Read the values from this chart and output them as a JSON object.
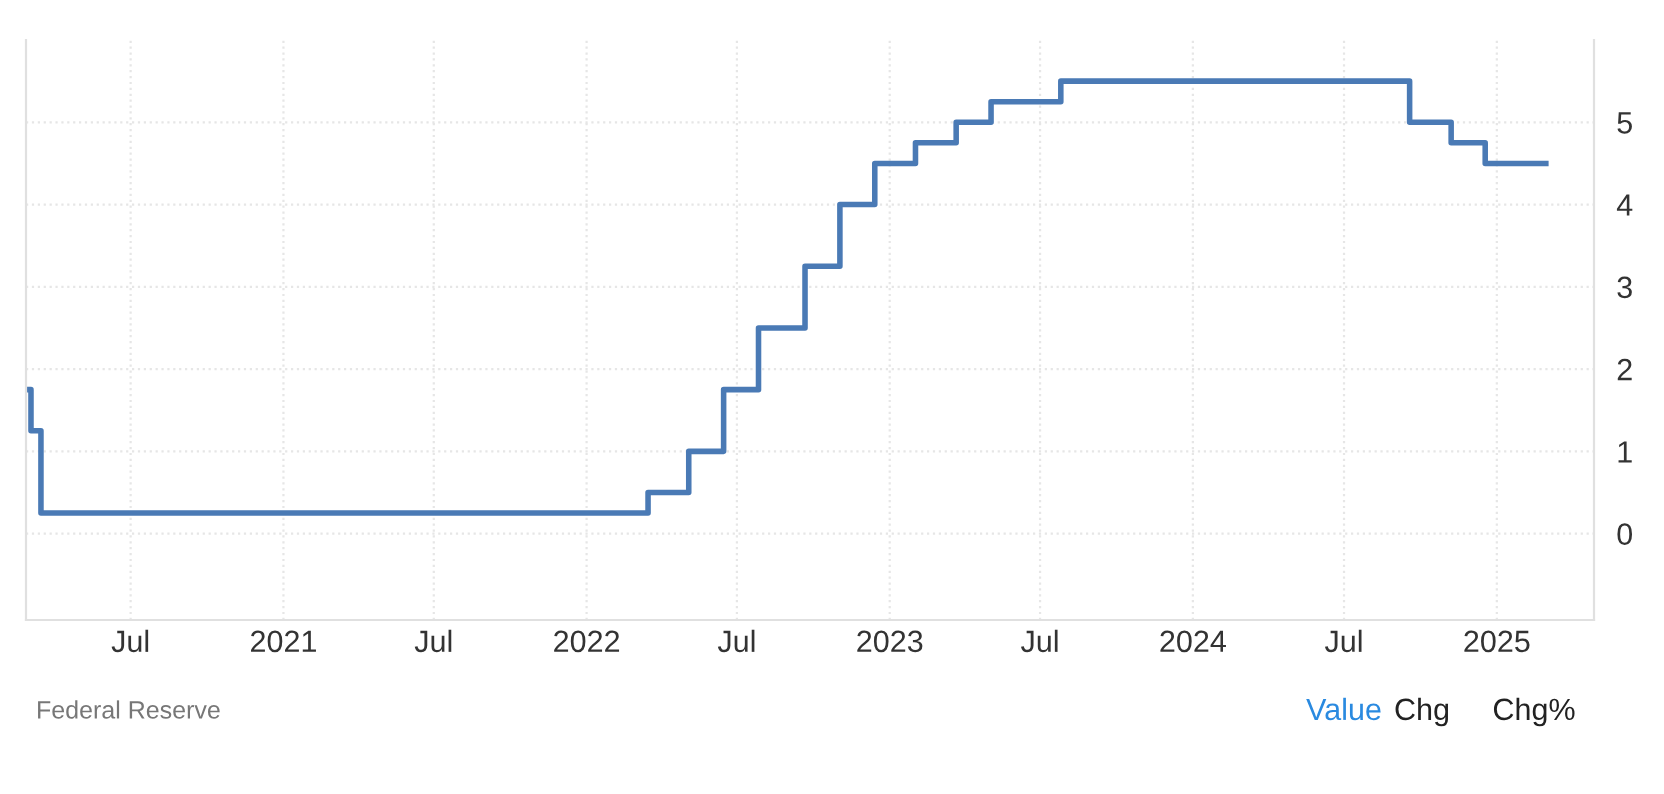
{
  "chart_data": {
    "type": "step",
    "x": [
      "2020-03-01",
      "2020-03-03",
      "2020-03-15",
      "2022-03-16",
      "2022-05-04",
      "2022-06-15",
      "2022-07-27",
      "2022-09-21",
      "2022-11-02",
      "2022-12-14",
      "2023-02-01",
      "2023-03-22",
      "2023-05-03",
      "2023-07-26",
      "2024-09-18",
      "2024-11-07",
      "2024-12-18",
      "2025-03-01"
    ],
    "series": [
      {
        "color": "#4a7ab5",
        "values": [
          1.75,
          1.25,
          0.25,
          0.5,
          1.0,
          1.75,
          2.5,
          3.25,
          4.0,
          4.5,
          4.75,
          5.0,
          5.25,
          5.5,
          5.0,
          4.75,
          4.5,
          4.5
        ]
      }
    ],
    "xlim": [
      "2020-02-26",
      "2025-04-28"
    ],
    "xticks": [
      {
        "value": "2020-07-01",
        "label": "Jul"
      },
      {
        "value": "2021-01-01",
        "label": "2021"
      },
      {
        "value": "2021-07-01",
        "label": "Jul"
      },
      {
        "value": "2022-01-01",
        "label": "2022"
      },
      {
        "value": "2022-07-01",
        "label": "Jul"
      },
      {
        "value": "2023-01-01",
        "label": "2023"
      },
      {
        "value": "2023-07-01",
        "label": "Jul"
      },
      {
        "value": "2024-01-01",
        "label": "2024"
      },
      {
        "value": "2024-07-01",
        "label": "Jul"
      },
      {
        "value": "2025-01-01",
        "label": "2025"
      }
    ],
    "ylim": [
      -1.05,
      6.0
    ],
    "yticks": [
      0,
      1,
      2,
      3,
      4,
      5
    ],
    "grid": true,
    "line_style": "solid",
    "annotations": [
      "Federal Reserve",
      "Value",
      "Chg",
      "Chg%"
    ]
  }
}
